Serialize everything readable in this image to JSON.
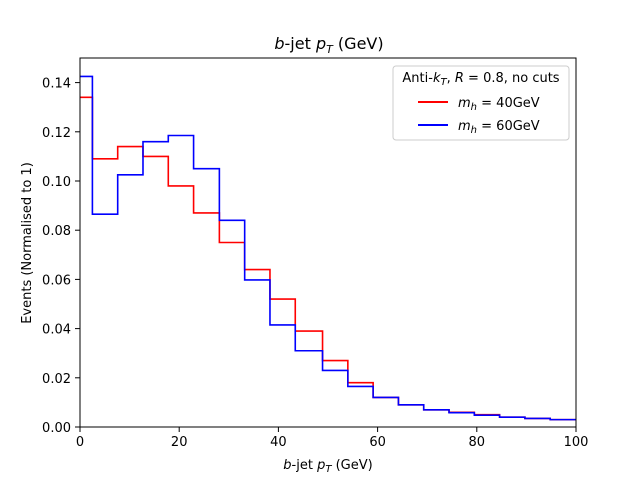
{
  "chart_data": {
    "type": "step",
    "title": "b-jet pT (GeV)",
    "xlabel": "b-jet pT (GeV)",
    "ylabel": "Events (Normalised to 1)",
    "xlim": [
      0,
      100
    ],
    "ylim": [
      0,
      0.15
    ],
    "xticks": [
      0,
      20,
      40,
      60,
      80,
      100
    ],
    "yticks": [
      0.0,
      0.02,
      0.04,
      0.06,
      0.08,
      0.1,
      0.12,
      0.14
    ],
    "grid": false,
    "legend_placement": "top-right",
    "legend_title": "Anti-kT, R = 0.8, no cuts",
    "bin_edges": [
      0,
      2.5,
      7.6,
      12.7,
      17.8,
      22.9,
      28.1,
      33.2,
      38.3,
      43.4,
      48.9,
      54,
      59.1,
      64.2,
      69.3,
      74.4,
      79.5,
      84.6,
      89.7,
      94.8,
      100
    ],
    "series": [
      {
        "name": "m_h = 40GeV",
        "color": "#ff0000",
        "values": [
          0.134,
          0.109,
          0.114,
          0.11,
          0.098,
          0.087,
          0.075,
          0.064,
          0.052,
          0.039,
          0.027,
          0.018,
          0.012,
          0.009,
          0.007,
          0.006,
          0.005,
          0.004,
          0.0035,
          0.003
        ]
      },
      {
        "name": "m_h = 60GeV",
        "color": "#0000ff",
        "values": [
          0.1425,
          0.0865,
          0.1025,
          0.116,
          0.1185,
          0.105,
          0.084,
          0.0598,
          0.0415,
          0.031,
          0.023,
          0.0165,
          0.012,
          0.009,
          0.007,
          0.0058,
          0.0048,
          0.004,
          0.0035,
          0.003
        ]
      }
    ]
  }
}
